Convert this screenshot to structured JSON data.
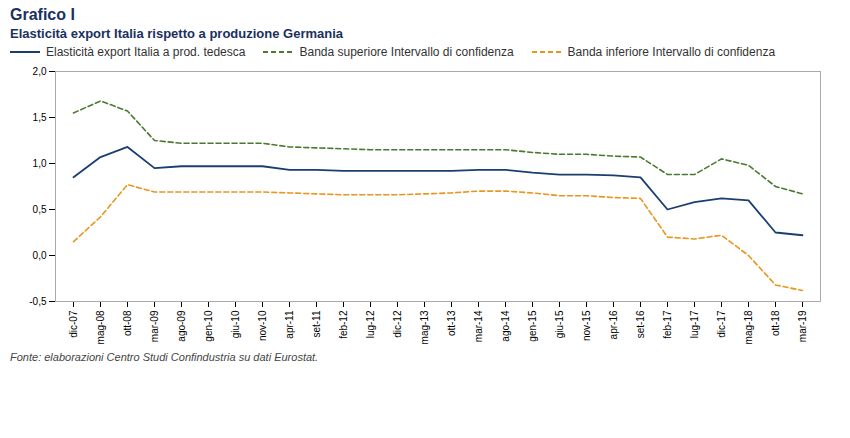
{
  "chart_data": {
    "type": "line",
    "title": "Grafico I",
    "subtitle": "Elasticità export Italia rispetto a produzione Germania",
    "caption": "Fonte: elaborazioni Centro Studi Confindustria su dati Eurostat.",
    "categories": [
      "dic-07",
      "mag-08",
      "ott-08",
      "mar-09",
      "ago-09",
      "gen-10",
      "giu-10",
      "nov-10",
      "apr-11",
      "set-11",
      "feb-12",
      "lug-12",
      "dic-12",
      "mag-13",
      "ott-13",
      "mar-14",
      "ago-14",
      "gen-15",
      "giu-15",
      "nov-15",
      "apr-16",
      "set-16",
      "feb-17",
      "lug-17",
      "dic-17",
      "mag-18",
      "ott-18",
      "mar-19"
    ],
    "series": [
      {
        "name": "Elasticità export Italia a prod. tedesca",
        "color": "#1a3f6f",
        "line_style": "solid",
        "values": [
          0.85,
          1.07,
          1.18,
          0.95,
          0.97,
          0.97,
          0.97,
          0.97,
          0.93,
          0.93,
          0.92,
          0.92,
          0.92,
          0.92,
          0.92,
          0.93,
          0.93,
          0.9,
          0.88,
          0.88,
          0.87,
          0.85,
          0.5,
          0.58,
          0.62,
          0.6,
          0.25,
          0.22
        ]
      },
      {
        "name": "Banda superiore Intervallo di confidenza",
        "color": "#4a7a2f",
        "line_style": "dashed",
        "values": [
          1.55,
          1.68,
          1.57,
          1.25,
          1.22,
          1.22,
          1.22,
          1.22,
          1.18,
          1.17,
          1.16,
          1.15,
          1.15,
          1.15,
          1.15,
          1.15,
          1.15,
          1.12,
          1.1,
          1.1,
          1.08,
          1.07,
          0.88,
          0.88,
          1.05,
          0.98,
          0.75,
          0.67
        ]
      },
      {
        "name": "Banda inferiore Intervallo di confidenza",
        "color": "#e8961e",
        "line_style": "dashed",
        "values": [
          0.15,
          0.42,
          0.77,
          0.69,
          0.69,
          0.69,
          0.69,
          0.69,
          0.68,
          0.67,
          0.66,
          0.66,
          0.66,
          0.67,
          0.68,
          0.7,
          0.7,
          0.68,
          0.65,
          0.65,
          0.63,
          0.62,
          0.2,
          0.18,
          0.22,
          0.0,
          -0.32,
          -0.38
        ]
      }
    ],
    "ylim": [
      -0.5,
      2.0
    ],
    "yticks": [
      {
        "value": -0.5,
        "label": "-0,5"
      },
      {
        "value": 0.0,
        "label": "0,0"
      },
      {
        "value": 0.5,
        "label": "0,5"
      },
      {
        "value": 1.0,
        "label": "1,0"
      },
      {
        "value": 1.5,
        "label": "1,5"
      },
      {
        "value": 2.0,
        "label": "2,0"
      }
    ],
    "grid": false
  }
}
